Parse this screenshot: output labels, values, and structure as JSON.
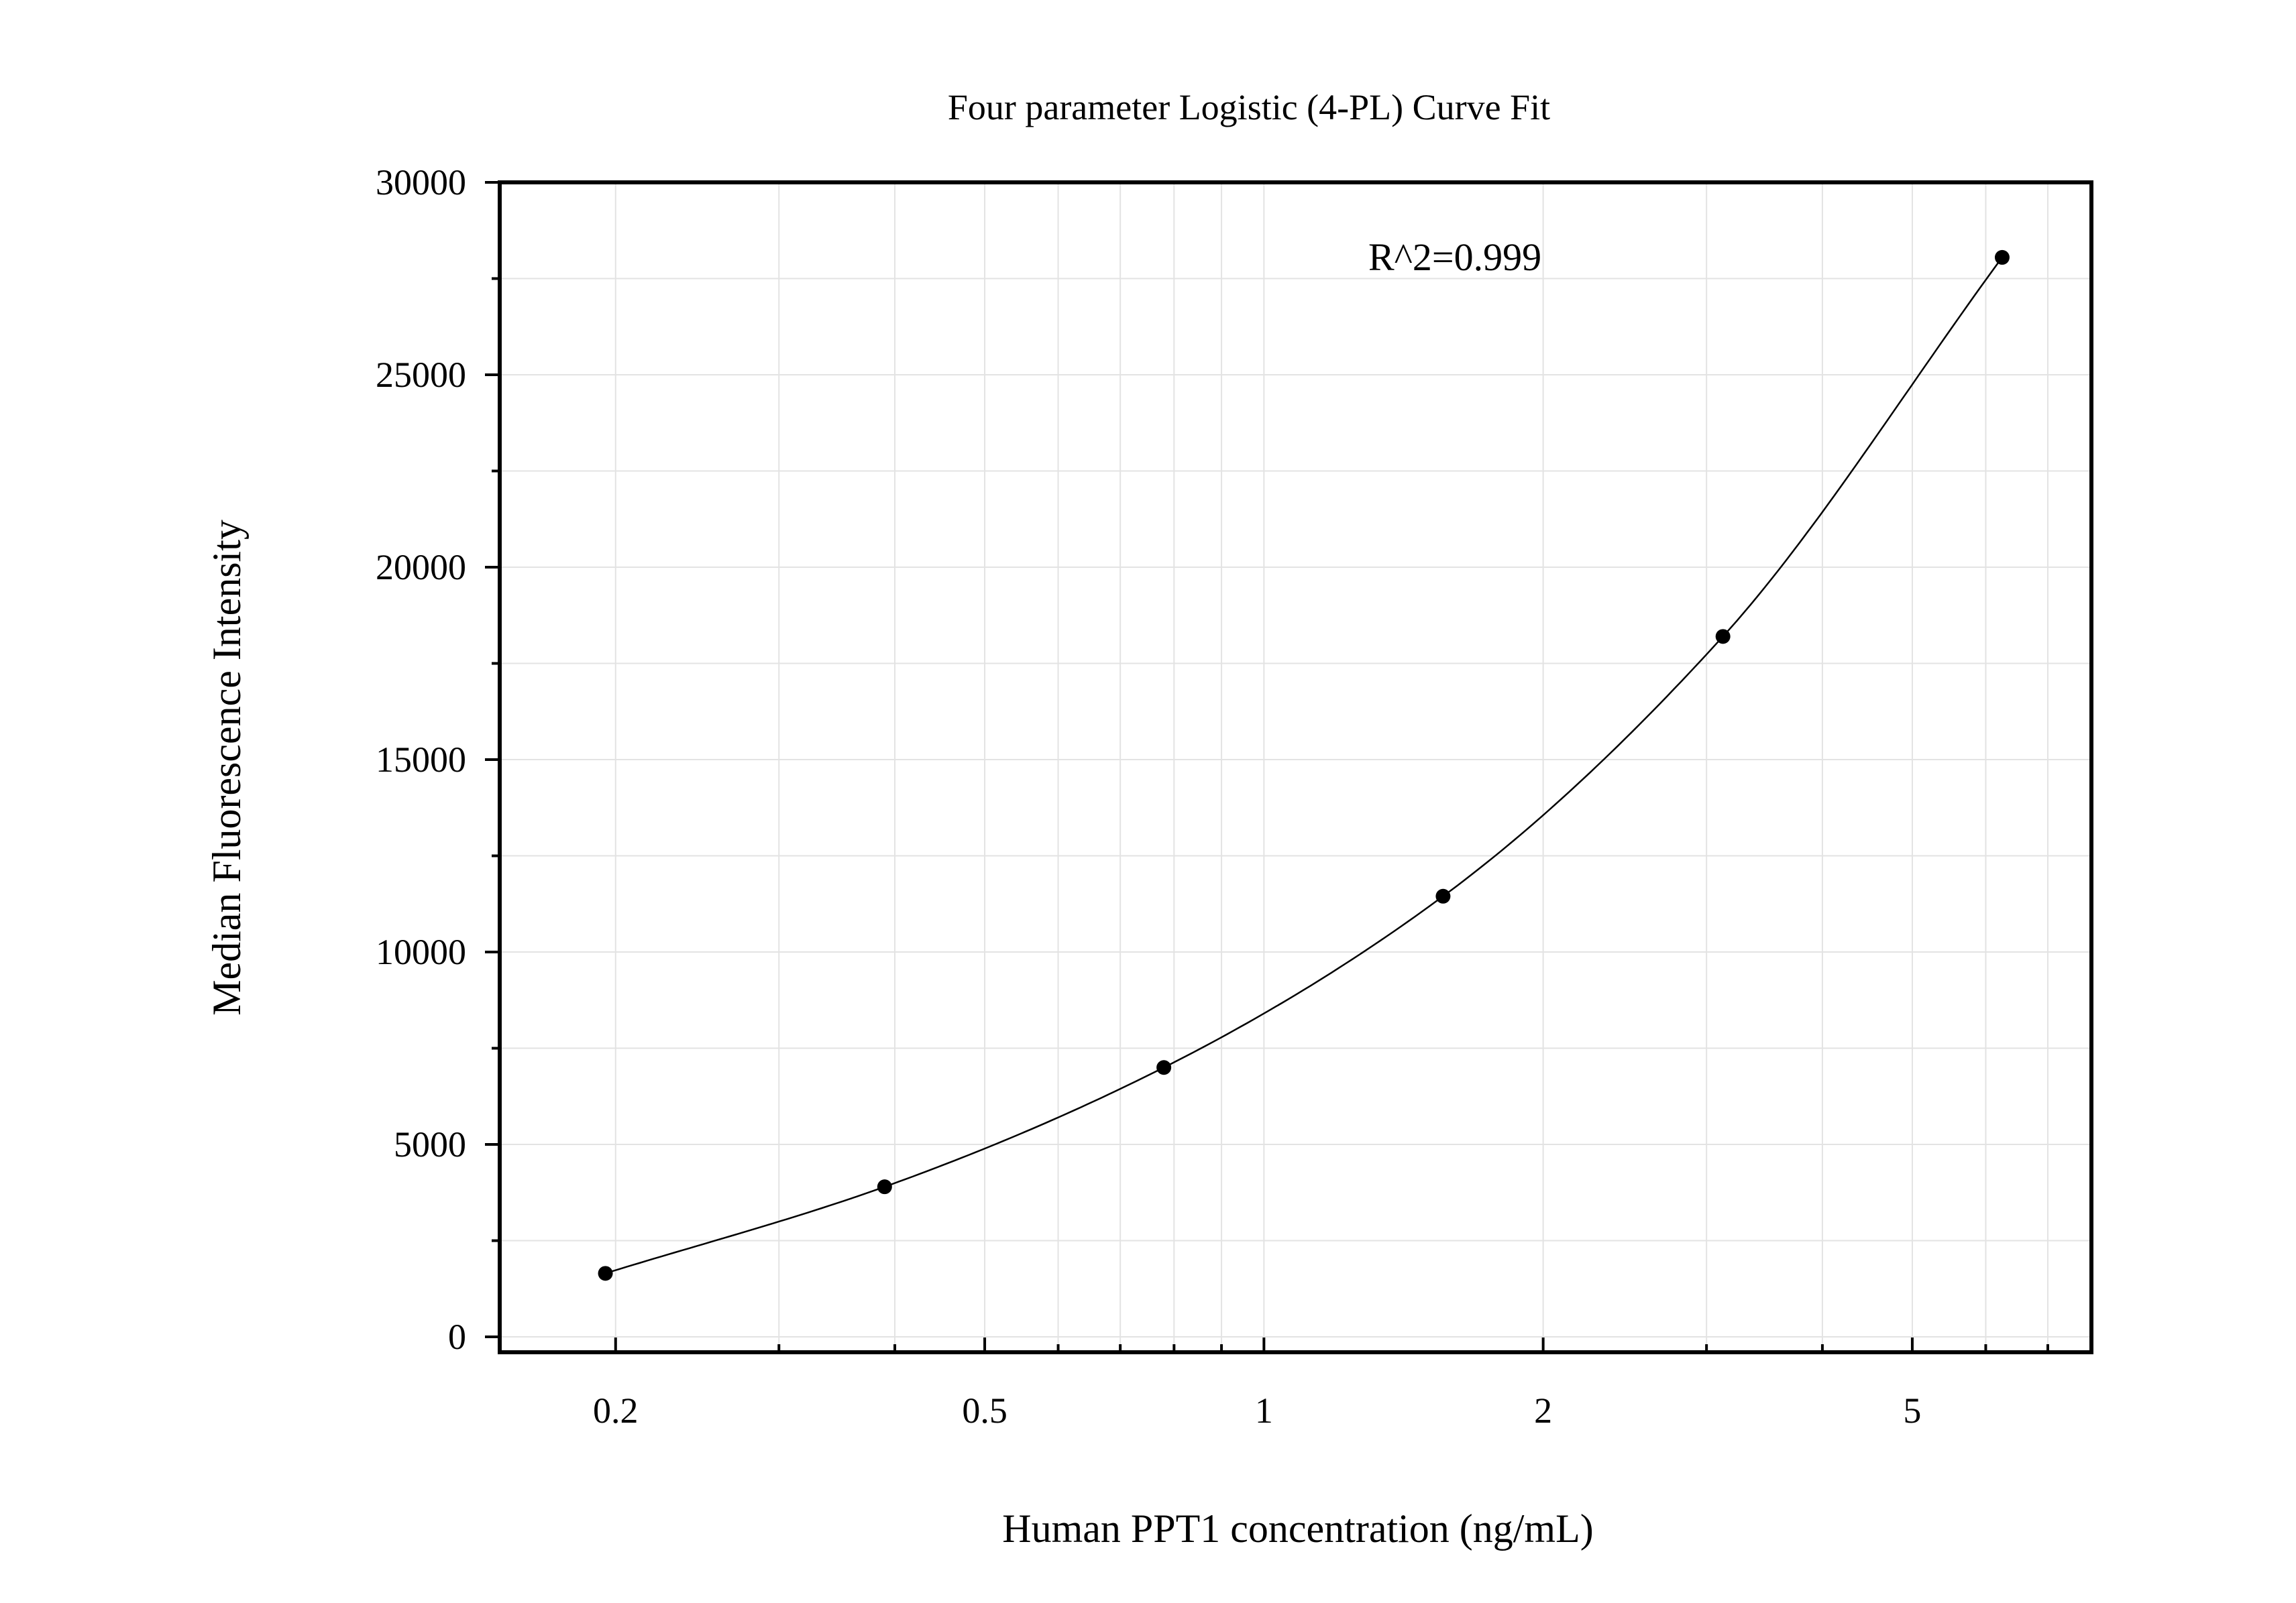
{
  "chart_data": {
    "type": "scatter",
    "title": "Four parameter Logistic (4-PL) Curve Fit",
    "xlabel": "Human PPT1 concentration (ng/mL)",
    "ylabel": "Median Fluorescence Intensity",
    "x_scale": "log",
    "xlim": [
      0.15,
      7.8
    ],
    "ylim": [
      -400,
      30000
    ],
    "x_ticks": [
      {
        "value": 0.2,
        "label": "0.2"
      },
      {
        "value": 0.5,
        "label": "0.5"
      },
      {
        "value": 1,
        "label": "1"
      },
      {
        "value": 2,
        "label": "2"
      },
      {
        "value": 5,
        "label": "5"
      }
    ],
    "y_ticks": [
      {
        "value": 0,
        "label": "0"
      },
      {
        "value": 5000,
        "label": "5000"
      },
      {
        "value": 10000,
        "label": "10000"
      },
      {
        "value": 15000,
        "label": "15000"
      },
      {
        "value": 20000,
        "label": "20000"
      },
      {
        "value": 25000,
        "label": "25000"
      },
      {
        "value": 30000,
        "label": "30000"
      }
    ],
    "grid": true,
    "points": [
      {
        "x": 0.195,
        "y": 1650
      },
      {
        "x": 0.39,
        "y": 3900
      },
      {
        "x": 0.78,
        "y": 7000
      },
      {
        "x": 1.56,
        "y": 11450
      },
      {
        "x": 3.125,
        "y": 18200
      },
      {
        "x": 6.25,
        "y": 28050
      }
    ],
    "fit_curve": "4-PL",
    "annotation": "R^2=0.999"
  }
}
